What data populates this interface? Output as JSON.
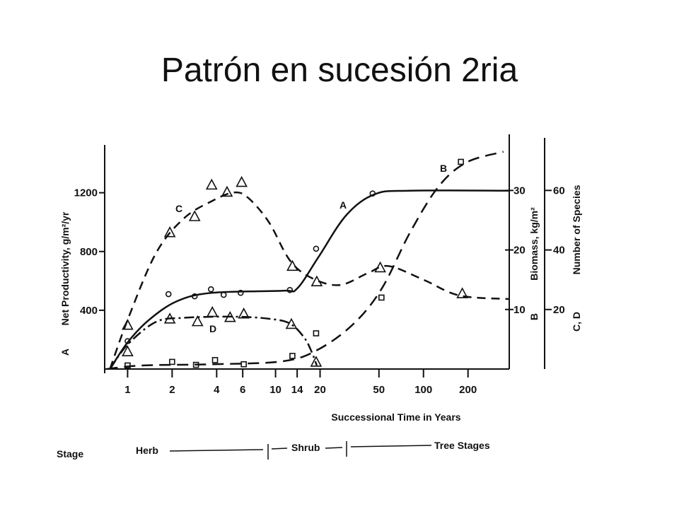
{
  "title": "Patrón en sucesión 2ria",
  "chart_data": {
    "type": "line",
    "x_label": "Successional Time in Years",
    "y_label": "Net Productivity, g/m²/yr",
    "y_label_tag": "A",
    "y2_label": "Biomass, kg/m²",
    "y2_label_tag": "B",
    "y3_label": "Number of Species",
    "y3_label_tag": "C, D",
    "xlog": true,
    "xlim": [
      0.7,
      380
    ],
    "xticks": [
      1,
      2,
      4,
      6,
      10,
      14,
      20,
      50,
      100,
      200
    ],
    "ylim": [
      0,
      1540
    ],
    "yticks": [
      400,
      800,
      1200
    ],
    "y2lim": [
      0,
      38
    ],
    "y2ticks": [
      10,
      20,
      30
    ],
    "y3lim": [
      0,
      76
    ],
    "y3ticks": [
      20,
      40,
      60
    ],
    "series": [
      {
        "name": "A",
        "axis": "y",
        "color": "#111111",
        "dash": "solid",
        "marker": "circle",
        "x": [
          0.76,
          1,
          1.39,
          2.16,
          3.74,
          11.2,
          14,
          19.5,
          30.1,
          46.9,
          81.3,
          377
        ],
        "values": [
          0,
          181,
          333,
          462,
          519,
          533,
          548,
          762,
          1048,
          1190,
          1214,
          1214
        ],
        "points_x": [
          1,
          1.89,
          2.84,
          3.66,
          4.46,
          5.81,
          12.5,
          18.8,
          45.3
        ],
        "points_values": [
          190,
          510,
          495,
          543,
          505,
          519,
          538,
          819,
          1195
        ]
      },
      {
        "name": "B",
        "axis": "y2",
        "color": "#111111",
        "dash": "long",
        "marker": "square",
        "x": [
          0.72,
          1.25,
          3.7,
          11.2,
          19.5,
          33.7,
          52.2,
          81,
          126,
          195,
          347
        ],
        "values": [
          0,
          0.6,
          0.8,
          1.3,
          3.3,
          7.6,
          13.5,
          22.9,
          30.6,
          34.7,
          36.5
        ],
        "points_x": [
          1,
          2,
          2.9,
          3.9,
          6.1,
          13,
          18.8,
          52,
          179
        ],
        "points_values": [
          0.6,
          1.2,
          0.7,
          1.5,
          0.8,
          2.2,
          6.0,
          12.0,
          34.8
        ]
      },
      {
        "name": "C",
        "axis": "y3",
        "color": "#111111",
        "dash": "dash",
        "marker": "triangle",
        "x": [
          0.76,
          1,
          1.55,
          2.4,
          3.74,
          5.2,
          6.5,
          9.0,
          12.5,
          17.5,
          27,
          42,
          58,
          101,
          175,
          377
        ],
        "values": [
          0,
          16.5,
          38.8,
          50.6,
          56.5,
          59.3,
          57.6,
          49.4,
          36.5,
          30.6,
          28.2,
          32.2,
          34.6,
          29.9,
          24.7,
          23.5
        ],
        "points_x": [
          1,
          1,
          1.93,
          2.84,
          3.7,
          4.7,
          5.9,
          13,
          19,
          51,
          183
        ],
        "points_values": [
          14.8,
          5.9,
          45.9,
          51.3,
          61.9,
          59.5,
          62.8,
          34.6,
          29.4,
          34.1,
          25.4
        ]
      },
      {
        "name": "D",
        "axis": "y3",
        "color": "#111111",
        "dash": "dashdot",
        "marker": "triangle",
        "x": [
          0.76,
          1,
          1.55,
          2.4,
          5.2,
          9.0,
          12.5,
          15.6,
          17.5,
          19
        ],
        "values": [
          0,
          8.2,
          15.8,
          17.2,
          17.6,
          16.9,
          15.3,
          10.6,
          5.9,
          1.2
        ],
        "points_x": [
          1.93,
          2.97,
          3.74,
          4.93,
          6.1,
          12.8,
          18.8
        ],
        "points_values": [
          16.9,
          16.0,
          19.1,
          17.4,
          18.6,
          15.1,
          2.4
        ]
      }
    ],
    "stages": {
      "label": "Stage",
      "names": [
        "Herb",
        "Shrub",
        "Tree Stages"
      ]
    }
  }
}
